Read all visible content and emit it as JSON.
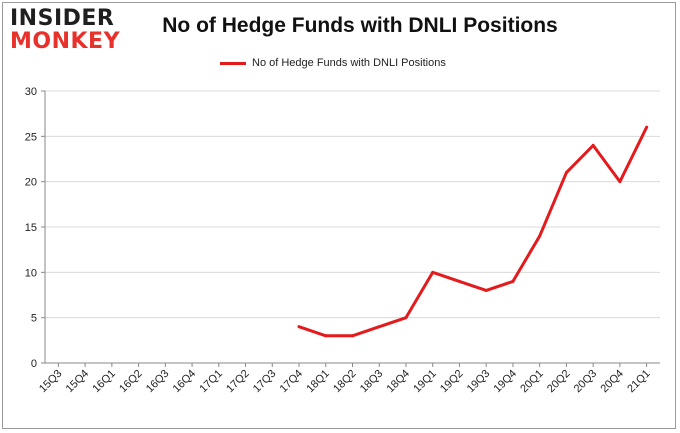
{
  "brand": {
    "line1": "INSIDER",
    "line2": "MONKEY"
  },
  "chart_data": {
    "type": "line",
    "title": "No of Hedge Funds with DNLI Positions",
    "xlabel": "",
    "ylabel": "",
    "categories": [
      "15Q3",
      "15Q4",
      "16Q1",
      "16Q2",
      "16Q3",
      "16Q4",
      "17Q1",
      "17Q2",
      "17Q3",
      "17Q4",
      "18Q1",
      "18Q2",
      "18Q3",
      "18Q4",
      "19Q1",
      "19Q2",
      "19Q3",
      "19Q4",
      "20Q1",
      "20Q2",
      "20Q3",
      "20Q4",
      "21Q1"
    ],
    "series": [
      {
        "name": "No of Hedge Funds with DNLI Positions",
        "color": "#e41a1c",
        "values": [
          null,
          null,
          null,
          null,
          null,
          null,
          null,
          null,
          null,
          4,
          3,
          3,
          4,
          5,
          10,
          9,
          8,
          9,
          14,
          21,
          24,
          20,
          26
        ]
      }
    ],
    "ylim": [
      0,
      30
    ],
    "yticks": [
      0,
      5,
      10,
      15,
      20,
      25,
      30
    ],
    "grid": true,
    "legend_position": "top-center"
  }
}
